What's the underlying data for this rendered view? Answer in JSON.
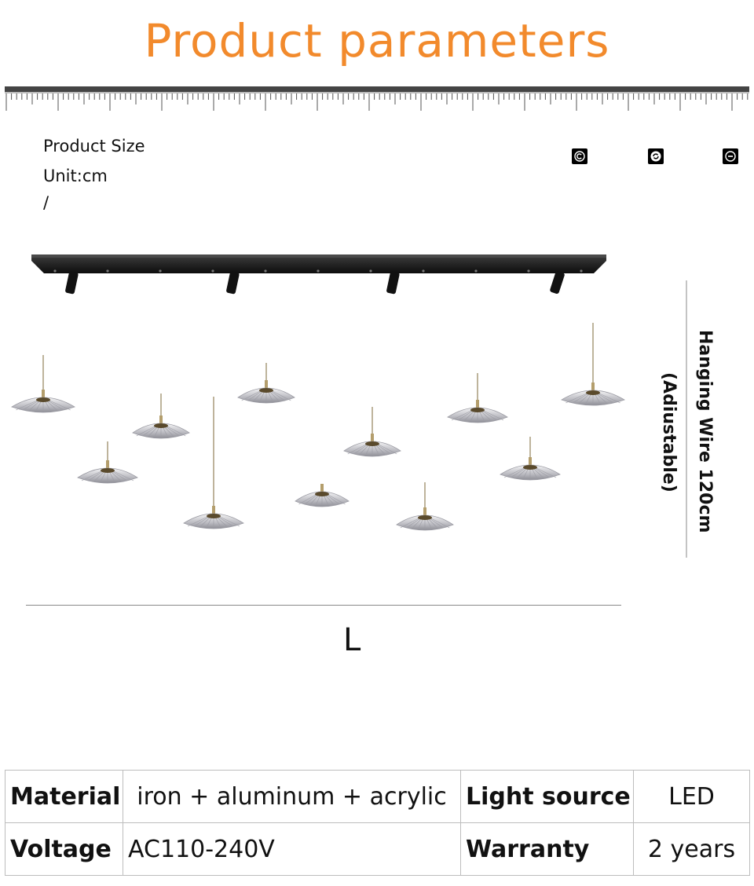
{
  "title": "Product parameters",
  "colors": {
    "title": "#f28a2c",
    "rail": "#1a1a1a",
    "ruler": "#444444"
  },
  "size_block": {
    "heading": "Product Size",
    "unit": "Unit:cm",
    "separator": "/"
  },
  "icons": [
    "copyright-icon",
    "refresh-icon",
    "minus-circle-icon"
  ],
  "dimension": {
    "wire_line1": "Hanging Wire 120cm",
    "wire_line2": "(Adiustable)",
    "length_letter": "L"
  },
  "specs": {
    "material_label": "Material",
    "material_value": "iron + aluminum + acrylic",
    "light_source_label": "Light source",
    "light_source_value": "LED",
    "voltage_label": "Voltage",
    "voltage_value": "AC110-240V",
    "warranty_label": "Warranty",
    "warranty_value": "2 years"
  }
}
